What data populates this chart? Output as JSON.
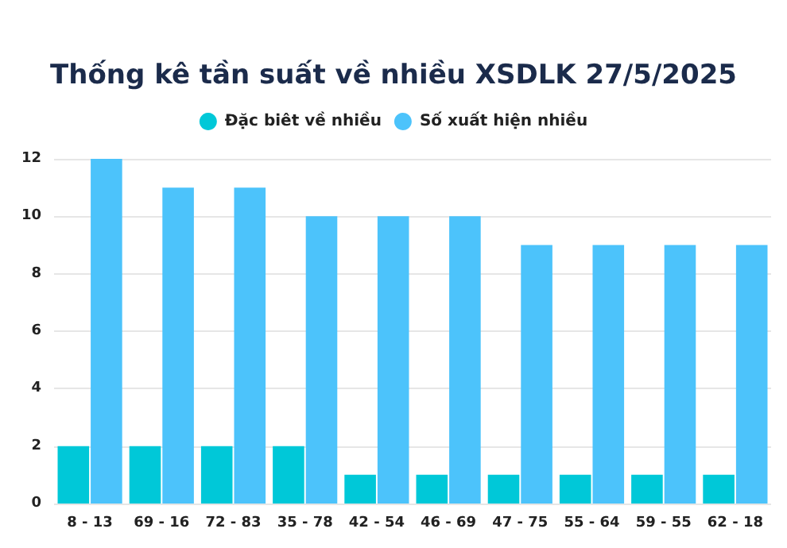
{
  "chart_data": {
    "type": "bar",
    "title": "Thống kê tần suất về nhiều XSDLK 27/5/2025",
    "categories": [
      "8 - 13",
      "69 - 16",
      "72 - 83",
      "35 - 78",
      "42 - 54",
      "46 - 69",
      "47 - 75",
      "55 - 64",
      "59 - 55",
      "62 - 18"
    ],
    "series": [
      {
        "name": "Đặc biêt về nhiều",
        "color": "#00c8d8",
        "values": [
          2,
          2,
          2,
          2,
          1,
          1,
          1,
          1,
          1,
          1
        ]
      },
      {
        "name": "Số xuất hiện nhiều",
        "color": "#4cc3fb",
        "values": [
          12,
          11,
          11,
          10,
          10,
          10,
          9,
          9,
          9,
          9
        ]
      }
    ],
    "ylim": [
      0,
      12
    ],
    "yticks": [
      0,
      2,
      4,
      6,
      8,
      10,
      12
    ],
    "grid": "y",
    "legend": "top"
  }
}
